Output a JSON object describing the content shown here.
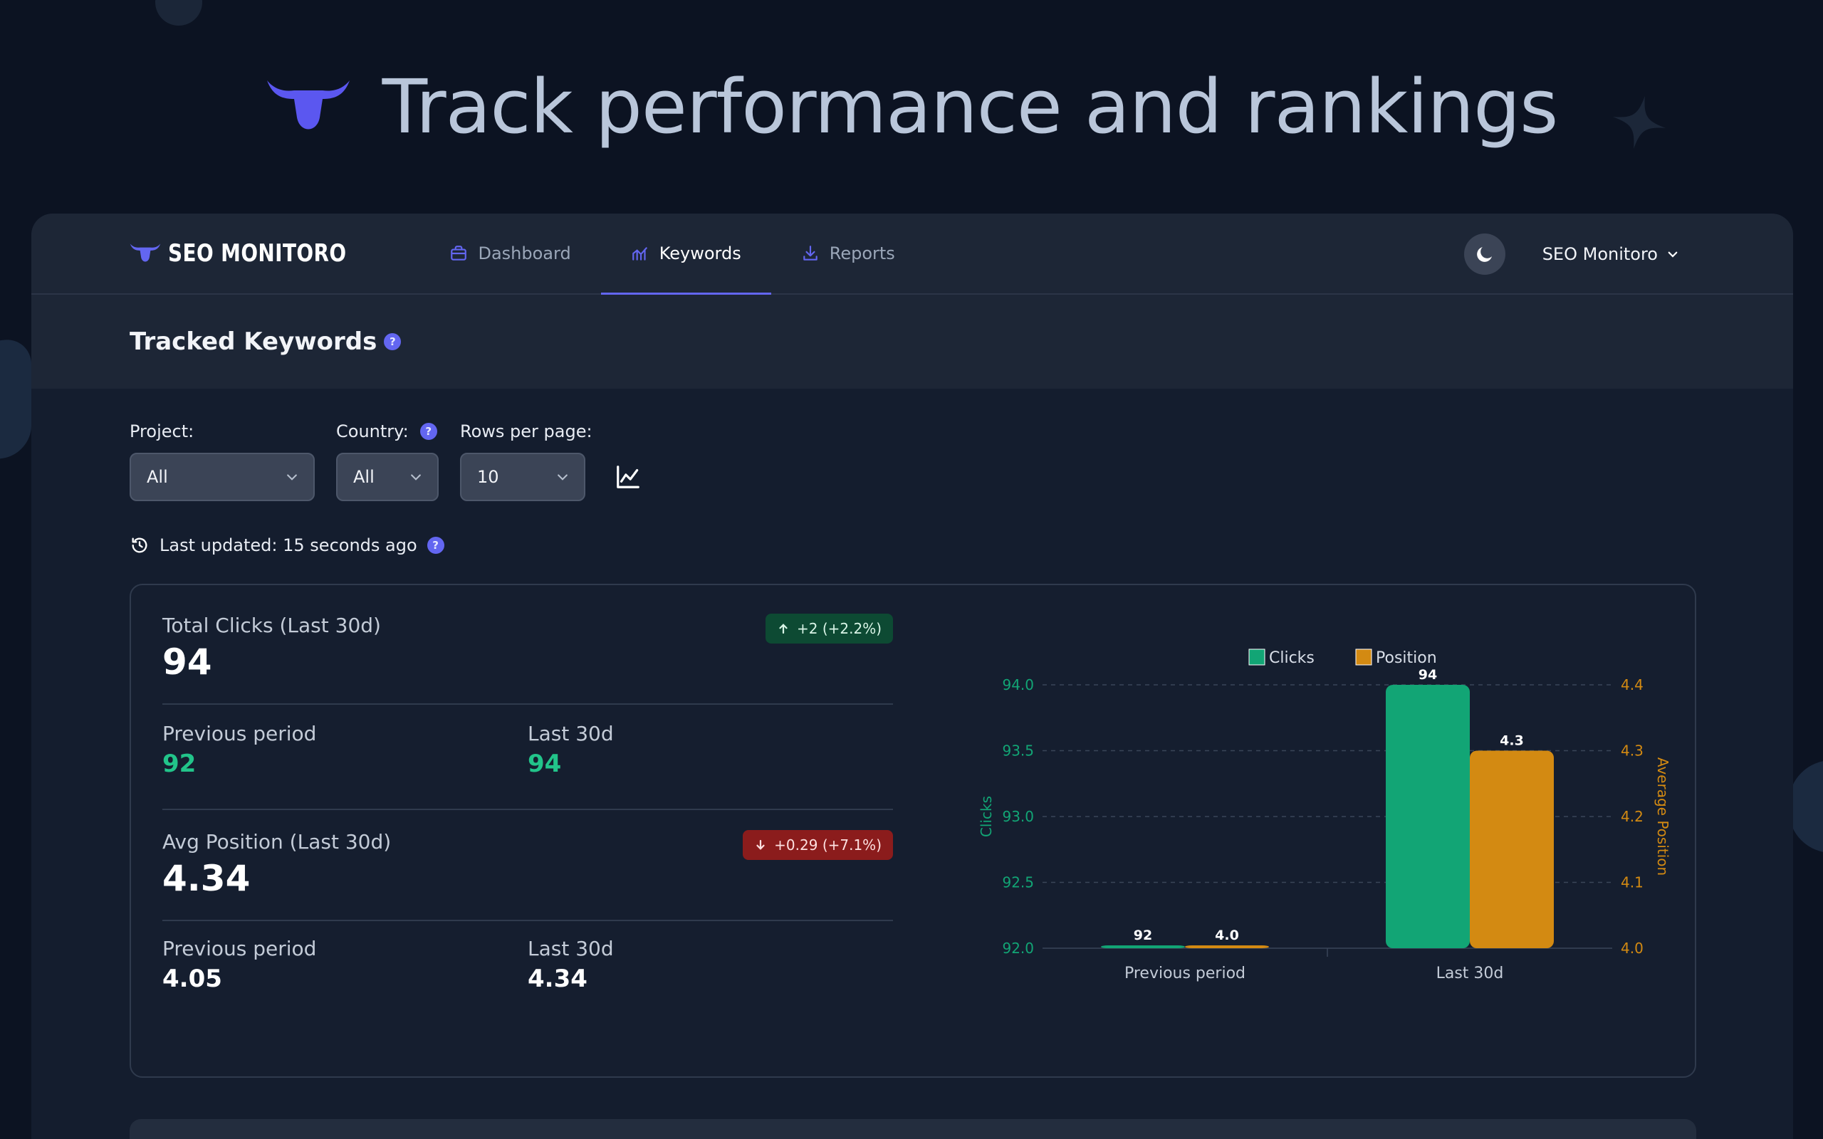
{
  "hero": {
    "title": "Track performance and rankings"
  },
  "brand": {
    "name": "SEO MONITORO",
    "accent": "#6366f1"
  },
  "nav": {
    "items": [
      {
        "label": "Dashboard",
        "icon": "briefcase-icon",
        "active": false
      },
      {
        "label": "Keywords",
        "icon": "chart-line-icon",
        "active": true
      },
      {
        "label": "Reports",
        "icon": "download-icon",
        "active": false
      }
    ]
  },
  "account": {
    "label": "SEO Monitoro"
  },
  "page": {
    "title": "Tracked Keywords",
    "help": "?"
  },
  "filters": {
    "project": {
      "label": "Project:",
      "value": "All"
    },
    "country": {
      "label": "Country:",
      "value": "All"
    },
    "rows": {
      "label": "Rows per page:",
      "value": "10"
    }
  },
  "updated": {
    "text": "Last updated: 15 seconds ago"
  },
  "clicks": {
    "title": "Total Clicks (Last 30d)",
    "value": "94",
    "badge": "+2 (+2.2%)",
    "prev_label": "Previous period",
    "prev_value": "92",
    "last_label": "Last 30d",
    "last_value": "94"
  },
  "position": {
    "title": "Avg Position (Last 30d)",
    "value": "4.34",
    "badge": "+0.29 (+7.1%)",
    "prev_label": "Previous period",
    "prev_value": "4.05",
    "last_label": "Last 30d",
    "last_value": "4.34"
  },
  "colors": {
    "clicks": "#12a575",
    "position": "#d38a12",
    "up_badge": "#0d4a33",
    "down_badge": "#8b1c1c"
  },
  "chart_data": {
    "type": "bar",
    "categories": [
      "Previous period",
      "Last 30d"
    ],
    "series": [
      {
        "name": "Clicks",
        "values": [
          92,
          94
        ],
        "labels": [
          "92",
          "94"
        ],
        "axis": "left",
        "color": "#12a575"
      },
      {
        "name": "Position",
        "values": [
          4.0,
          4.3
        ],
        "labels": [
          "4.0",
          "4.3"
        ],
        "axis": "right",
        "color": "#d38a12"
      }
    ],
    "y_left": {
      "label": "Clicks",
      "min": 92.0,
      "max": 94.0,
      "ticks": [
        "92.0",
        "92.5",
        "93.0",
        "93.5",
        "94.0"
      ]
    },
    "y_right": {
      "label": "Average Position",
      "min": 4.0,
      "max": 4.4,
      "ticks": [
        "4.0",
        "4.1",
        "4.2",
        "4.3",
        "4.4"
      ]
    },
    "legend_position": "top-center",
    "grid": true
  }
}
